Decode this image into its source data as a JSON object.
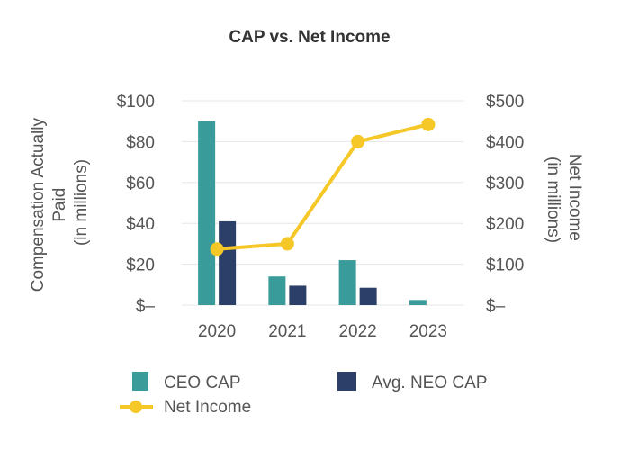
{
  "chart_data": {
    "type": "bar",
    "title": "CAP vs. Net Income",
    "categories": [
      "2020",
      "2021",
      "2022",
      "2023"
    ],
    "series": [
      {
        "name": "CEO CAP",
        "type": "bar",
        "axis": "left",
        "color": "#3a9b9b",
        "values": [
          90,
          14,
          22,
          2.5
        ]
      },
      {
        "name": "Avg. NEO CAP",
        "type": "bar",
        "axis": "left",
        "color": "#2b3f69",
        "values": [
          41,
          9.5,
          8.5,
          null
        ]
      },
      {
        "name": "Net Income",
        "type": "line",
        "axis": "right",
        "color": "#f5c827",
        "values": [
          137,
          150,
          400,
          442
        ]
      }
    ],
    "y_left": {
      "label_lines": [
        "Compensation Actually",
        "Paid",
        "(in millions)"
      ],
      "ylim": [
        0,
        100
      ],
      "ticks": [
        0,
        20,
        40,
        60,
        80,
        100
      ],
      "tick_labels": [
        "$–",
        "$20",
        "$40",
        "$60",
        "$80",
        "$100"
      ]
    },
    "y_right": {
      "label_lines": [
        "Net Income",
        "(in millions)"
      ],
      "ylim": [
        0,
        500
      ],
      "ticks": [
        0,
        100,
        200,
        300,
        400,
        500
      ],
      "tick_labels": [
        "$–",
        "$100",
        "$200",
        "$300",
        "$400",
        "$500"
      ]
    },
    "grid": true,
    "legend": {
      "placement": "bottom",
      "items": [
        "CEO CAP",
        "Avg. NEO CAP",
        "Net Income"
      ]
    }
  }
}
